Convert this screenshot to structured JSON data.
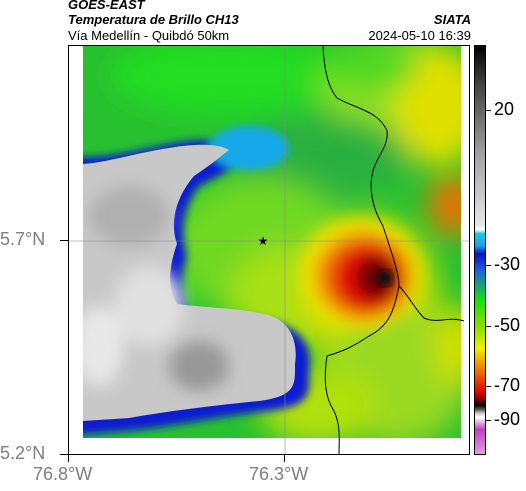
{
  "header": {
    "satellite": "GOES-EAST",
    "product": "Temperatura de Brillo CH13",
    "brand": "SIATA",
    "region": "Vía Medellín - Quibdó 50km",
    "datetime": "2024-05-10 16:39"
  },
  "map": {
    "lat_labels": [
      "5.7°N",
      "5.2°N"
    ],
    "lon_labels": [
      "76.8°W",
      "76.3°W"
    ],
    "marker": "station-star",
    "gridlines": true
  },
  "colorbar": {
    "ticks": [
      "20",
      "-30",
      "-50",
      "-70",
      "-90"
    ],
    "colors": {
      "black": "#000000",
      "gray": "#a0a0a0",
      "cyan": "#1cc8e0",
      "blue": "#1010c0",
      "green": "#10e010",
      "yellow": "#f0f000",
      "orange": "#f07000",
      "red": "#e00000",
      "magenta": "#c040c0"
    }
  }
}
